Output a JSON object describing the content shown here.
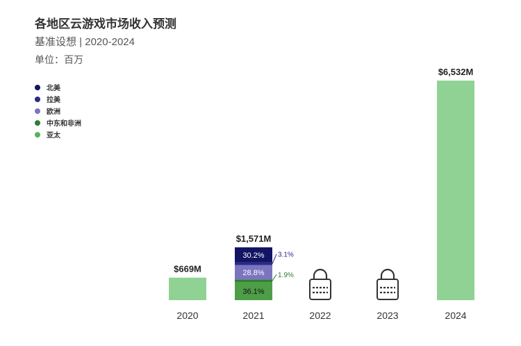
{
  "chart_data": {
    "type": "bar",
    "title": "各地区云游戏市场收入预测",
    "subtitle": "基准设想 | 2020-2024",
    "unit_label": "单位：百万",
    "legend": [
      {
        "name": "北美",
        "color": "#141464"
      },
      {
        "name": "拉美",
        "color": "#2a2a8a"
      },
      {
        "name": "欧洲",
        "color": "#7b75bf"
      },
      {
        "name": "中东和非洲",
        "color": "#2e7d32"
      },
      {
        "name": "亚太",
        "color": "#5bb05f"
      }
    ],
    "categories": [
      "2020",
      "2021",
      "2022",
      "2023",
      "2024"
    ],
    "values": [
      669,
      1571,
      null,
      null,
      6532
    ],
    "value_labels": [
      "$669M",
      "$1,571M",
      "",
      "",
      "$6,532M"
    ],
    "locked": [
      false,
      false,
      true,
      true,
      false
    ],
    "bar_color": "#90d294",
    "breakdown_2021": [
      {
        "name": "亚太",
        "percent": 36.1,
        "label": "36.1%",
        "color": "#4e9e48"
      },
      {
        "name": "中东和非洲",
        "percent": 1.9,
        "label": "1.9%",
        "color": "#2e7d32"
      },
      {
        "name": "欧洲",
        "percent": 28.8,
        "label": "28.8%",
        "color": "#7b75bf"
      },
      {
        "name": "拉美",
        "percent": 3.1,
        "label": "3.1%",
        "color": "#2a2a8a"
      },
      {
        "name": "北美",
        "percent": 30.2,
        "label": "30.2%",
        "color": "#141464"
      }
    ],
    "ylim": [
      0,
      6532
    ]
  }
}
